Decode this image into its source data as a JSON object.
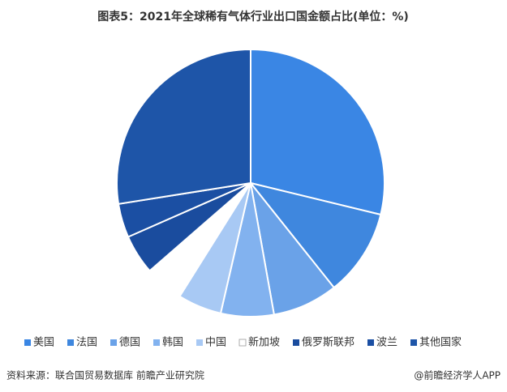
{
  "chart_data": {
    "type": "pie",
    "title": "图表5：2021年全球稀有气体行业出口国金额占比(单位：%)",
    "categories": [
      "美国",
      "法国",
      "德国",
      "韩国",
      "中国",
      "新加坡",
      "俄罗斯联邦",
      "波兰",
      "其他国家"
    ],
    "values": [
      28.8,
      10.5,
      7.9,
      6.4,
      5.3,
      4.7,
      4.8,
      4.1,
      27.5
    ],
    "colors": [
      "#3a86e4",
      "#3f87de",
      "#6aa2e8",
      "#82b2ef",
      "#a8c9f4",
      "#ffffff",
      "#1a4c9e",
      "#1b4fa3",
      "#1e55a8"
    ],
    "legend": "bottom"
  },
  "footer": {
    "source": "资料来源：联合国贸易数据库 前瞻产业研究院",
    "brand": "@前瞻经济学人APP"
  }
}
